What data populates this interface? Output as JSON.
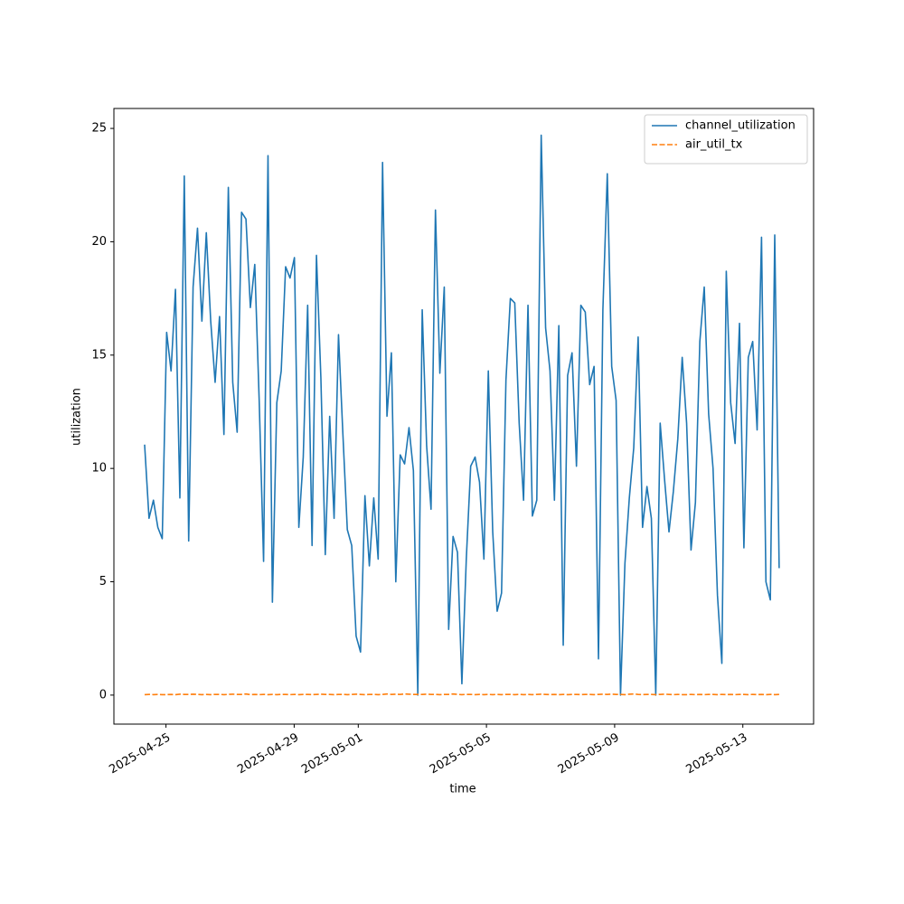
{
  "chart_data": {
    "type": "line",
    "xlabel": "time",
    "ylabel": "utilization",
    "x": [
      "2025-04-24T08:00",
      "2025-04-24T11:18",
      "2025-04-24T14:36",
      "2025-04-24T17:54",
      "2025-04-24T21:12",
      "2025-04-25T00:30",
      "2025-04-25T03:48",
      "2025-04-25T07:06",
      "2025-04-25T10:24",
      "2025-04-25T13:42",
      "2025-04-25T17:00",
      "2025-04-25T20:18",
      "2025-04-25T23:36",
      "2025-04-26T02:54",
      "2025-04-26T06:12",
      "2025-04-26T09:30",
      "2025-04-26T12:48",
      "2025-04-26T16:06",
      "2025-04-26T19:24",
      "2025-04-26T22:42",
      "2025-04-27T02:00",
      "2025-04-27T05:18",
      "2025-04-27T08:36",
      "2025-04-27T11:54",
      "2025-04-27T15:12",
      "2025-04-27T18:30",
      "2025-04-27T21:48",
      "2025-04-28T01:06",
      "2025-04-28T04:24",
      "2025-04-28T07:42",
      "2025-04-28T11:00",
      "2025-04-28T14:18",
      "2025-04-28T17:36",
      "2025-04-28T20:54",
      "2025-04-29T00:12",
      "2025-04-29T03:30",
      "2025-04-29T06:48",
      "2025-04-29T10:06",
      "2025-04-29T13:24",
      "2025-04-29T16:42",
      "2025-04-29T20:00",
      "2025-04-29T23:18",
      "2025-04-30T02:36",
      "2025-04-30T05:54",
      "2025-04-30T09:12",
      "2025-04-30T12:30",
      "2025-04-30T15:48",
      "2025-04-30T19:06",
      "2025-04-30T22:24",
      "2025-05-01T01:42",
      "2025-05-01T05:00",
      "2025-05-01T08:18",
      "2025-05-01T11:36",
      "2025-05-01T14:54",
      "2025-05-01T18:12",
      "2025-05-01T21:30",
      "2025-05-02T00:48",
      "2025-05-02T04:06",
      "2025-05-02T07:24",
      "2025-05-02T10:42",
      "2025-05-02T14:00",
      "2025-05-02T17:18",
      "2025-05-02T20:36",
      "2025-05-02T23:54",
      "2025-05-03T03:12",
      "2025-05-03T06:30",
      "2025-05-03T09:48",
      "2025-05-03T13:06",
      "2025-05-03T16:24",
      "2025-05-03T19:42",
      "2025-05-03T23:00",
      "2025-05-04T02:18",
      "2025-05-04T05:36",
      "2025-05-04T08:54",
      "2025-05-04T12:12",
      "2025-05-04T15:30",
      "2025-05-04T18:48",
      "2025-05-04T22:06",
      "2025-05-05T01:24",
      "2025-05-05T04:42",
      "2025-05-05T08:00",
      "2025-05-05T11:18",
      "2025-05-05T14:36",
      "2025-05-05T17:54",
      "2025-05-05T21:12",
      "2025-05-06T00:30",
      "2025-05-06T03:48",
      "2025-05-06T07:06",
      "2025-05-06T10:24",
      "2025-05-06T13:42",
      "2025-05-06T17:00",
      "2025-05-06T20:18",
      "2025-05-06T23:36",
      "2025-05-07T02:54",
      "2025-05-07T06:12",
      "2025-05-07T09:30",
      "2025-05-07T12:48",
      "2025-05-07T16:06",
      "2025-05-07T19:24",
      "2025-05-07T22:42",
      "2025-05-08T02:00",
      "2025-05-08T05:18",
      "2025-05-08T08:36",
      "2025-05-08T11:54",
      "2025-05-08T15:12",
      "2025-05-08T18:30",
      "2025-05-08T21:48",
      "2025-05-09T01:06",
      "2025-05-09T04:24",
      "2025-05-09T07:42",
      "2025-05-09T11:00",
      "2025-05-09T14:18",
      "2025-05-09T17:36",
      "2025-05-09T20:54",
      "2025-05-10T00:12",
      "2025-05-10T03:30",
      "2025-05-10T06:48",
      "2025-05-10T10:06",
      "2025-05-10T13:24",
      "2025-05-10T16:42",
      "2025-05-10T20:00",
      "2025-05-10T23:18",
      "2025-05-11T02:36",
      "2025-05-11T05:54",
      "2025-05-11T09:12",
      "2025-05-11T12:30",
      "2025-05-11T15:48",
      "2025-05-11T19:06",
      "2025-05-11T22:24",
      "2025-05-12T01:42",
      "2025-05-12T05:00",
      "2025-05-12T08:18",
      "2025-05-12T11:36",
      "2025-05-12T14:54",
      "2025-05-12T18:12",
      "2025-05-12T21:30",
      "2025-05-13T00:48",
      "2025-05-13T04:06",
      "2025-05-13T07:24",
      "2025-05-13T10:42",
      "2025-05-13T14:00",
      "2025-05-13T17:18",
      "2025-05-13T20:36",
      "2025-05-13T23:54",
      "2025-05-14T03:12"
    ],
    "series": [
      {
        "name": "channel_utilization",
        "color": "#1f77b4",
        "dash": false,
        "values": [
          11.05,
          7.8,
          8.6,
          7.4,
          6.9,
          16.0,
          14.3,
          17.9,
          8.7,
          22.9,
          6.8,
          18.0,
          20.6,
          16.5,
          20.4,
          16.5,
          13.8,
          16.7,
          11.5,
          22.4,
          13.8,
          11.6,
          21.3,
          21.0,
          17.1,
          19.0,
          13.0,
          5.9,
          23.8,
          4.1,
          12.9,
          14.3,
          18.9,
          18.4,
          19.3,
          7.4,
          10.5,
          17.2,
          6.6,
          19.4,
          14.0,
          6.2,
          12.3,
          7.8,
          15.9,
          11.5,
          7.3,
          6.6,
          2.6,
          1.9,
          8.8,
          5.7,
          8.7,
          6.0,
          23.5,
          12.3,
          15.1,
          5.0,
          10.6,
          10.2,
          11.8,
          9.9,
          0.0,
          17.0,
          11.0,
          8.2,
          21.4,
          14.2,
          18.0,
          2.9,
          7.0,
          6.3,
          0.5,
          6.0,
          10.1,
          10.5,
          9.4,
          6.0,
          14.3,
          7.2,
          3.7,
          4.5,
          13.9,
          17.5,
          17.3,
          12.0,
          8.6,
          17.2,
          7.9,
          8.6,
          24.7,
          16.2,
          14.3,
          8.6,
          16.3,
          2.2,
          14.1,
          15.1,
          10.1,
          17.2,
          16.9,
          13.7,
          14.5,
          1.6,
          17.0,
          23.0,
          14.5,
          13.0,
          0.0,
          5.8,
          8.7,
          10.9,
          15.8,
          7.4,
          9.2,
          7.8,
          0.0,
          12.0,
          9.5,
          7.2,
          9.0,
          11.3,
          14.9,
          12.0,
          6.4,
          8.5,
          15.6,
          18.0,
          12.4,
          10.0,
          4.4,
          1.4,
          18.7,
          12.9,
          11.1,
          16.4,
          6.5,
          14.9,
          15.6,
          11.7,
          20.2,
          5.0,
          4.2,
          20.3,
          5.6
        ]
      },
      {
        "name": "air_util_tx",
        "color": "#ff7f0e",
        "dash": true,
        "values": [
          0.02,
          0.03,
          0.02,
          0.03,
          0.02,
          0.02,
          0.03,
          0.02,
          0.04,
          0.03,
          0.03,
          0.04,
          0.03,
          0.02,
          0.03,
          0.02,
          0.03,
          0.03,
          0.02,
          0.03,
          0.04,
          0.03,
          0.03,
          0.05,
          0.02,
          0.03,
          0.02,
          0.03,
          0.02,
          0.03,
          0.02,
          0.03,
          0.03,
          0.02,
          0.03,
          0.02,
          0.03,
          0.03,
          0.02,
          0.03,
          0.04,
          0.03,
          0.03,
          0.02,
          0.03,
          0.03,
          0.02,
          0.03,
          0.04,
          0.03,
          0.02,
          0.03,
          0.03,
          0.02,
          0.03,
          0.05,
          0.03,
          0.04,
          0.03,
          0.05,
          0.04,
          0.03,
          0.03,
          0.03,
          0.04,
          0.03,
          0.03,
          0.02,
          0.03,
          0.03,
          0.05,
          0.03,
          0.02,
          0.03,
          0.03,
          0.02,
          0.03,
          0.02,
          0.03,
          0.02,
          0.03,
          0.02,
          0.03,
          0.03,
          0.02,
          0.03,
          0.02,
          0.03,
          0.02,
          0.03,
          0.04,
          0.03,
          0.02,
          0.03,
          0.02,
          0.03,
          0.02,
          0.03,
          0.03,
          0.02,
          0.03,
          0.03,
          0.02,
          0.03,
          0.04,
          0.03,
          0.04,
          0.03,
          0.03,
          0.02,
          0.04,
          0.05,
          0.03,
          0.02,
          0.03,
          0.03,
          0.02,
          0.03,
          0.04,
          0.03,
          0.02,
          0.03,
          0.02,
          0.02,
          0.03,
          0.02,
          0.03,
          0.02,
          0.03,
          0.03,
          0.02,
          0.03,
          0.02,
          0.03,
          0.02,
          0.03,
          0.03,
          0.02,
          0.03,
          0.02,
          0.03,
          0.02,
          0.03,
          0.02,
          0.03
        ]
      }
    ],
    "xlim": [
      "2025-04-23T09:00",
      "2025-05-15T05:00"
    ],
    "xticks": [
      "2025-04-25",
      "2025-04-29",
      "2025-05-01",
      "2025-05-05",
      "2025-05-09",
      "2025-05-13"
    ],
    "ylim": [
      -1.28,
      25.88
    ],
    "yticks": [
      0,
      5,
      10,
      15,
      20,
      25
    ],
    "grid": false,
    "legend": "upper right"
  }
}
